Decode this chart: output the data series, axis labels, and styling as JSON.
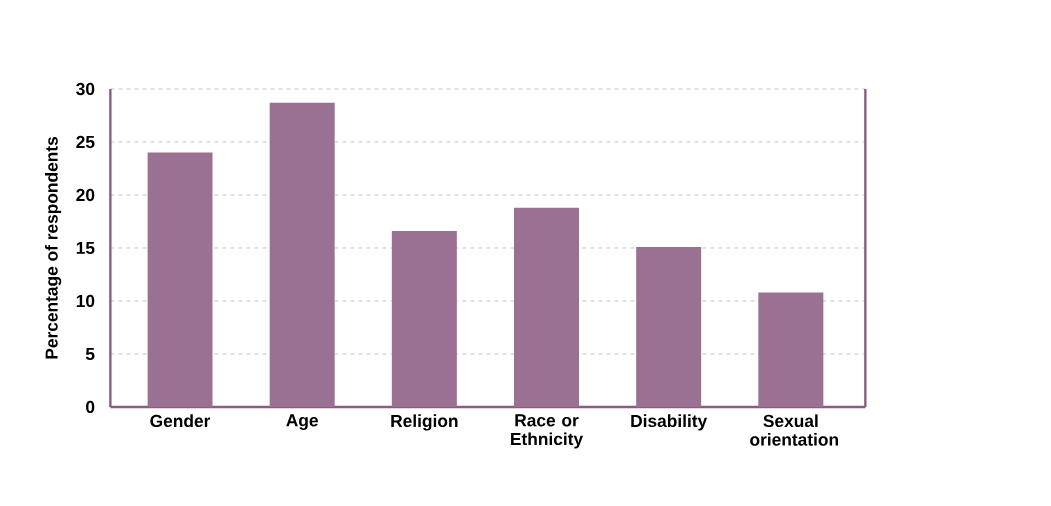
{
  "chart_data": {
    "type": "bar",
    "ylabel": "Percentage of respondents",
    "categories": [
      "Gender",
      "Age",
      "Religion",
      "Race or Ethnicity",
      "Disability",
      "Sexual orientation"
    ],
    "values": [
      24.0,
      28.7,
      16.6,
      18.8,
      15.1,
      10.8
    ],
    "color": "#9a7193",
    "ylim": [
      0,
      30
    ],
    "yticks": [
      0,
      5,
      10,
      15,
      20,
      25,
      30
    ],
    "grid": "y"
  }
}
